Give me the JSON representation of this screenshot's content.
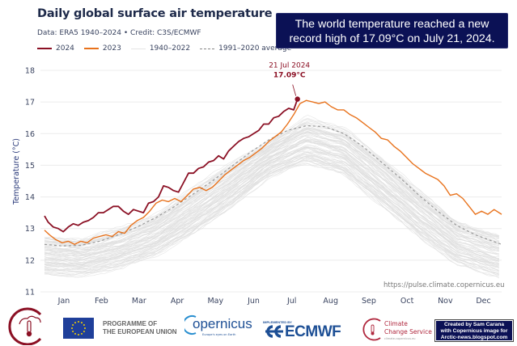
{
  "header": {
    "title": "Daily global surface air temperature",
    "subtitle": "Data: ERA5 1940–2024  •  Credit: C3S/ECMWF",
    "banner_line1": "The world temperature reached a new",
    "banner_line2": "record high of 17.09°C on July 21, 2024."
  },
  "legend": [
    {
      "label": "2024",
      "color": "#8b1024",
      "style": "solid"
    },
    {
      "label": "2023",
      "color": "#e8721c",
      "style": "solid"
    },
    {
      "label": "1940–2022",
      "color": "#e0e0e0",
      "style": "solid"
    },
    {
      "label": "1991–2020 average",
      "color": "#999999",
      "style": "dashed"
    }
  ],
  "chart_data": {
    "type": "line",
    "title": "Daily global surface air temperature",
    "xlabel": "",
    "ylabel": "Temperature (°C)",
    "ylim": [
      11,
      18
    ],
    "yticks": [
      11,
      12,
      13,
      14,
      15,
      16,
      17,
      18
    ],
    "xlim_day_of_year": [
      1,
      366
    ],
    "x_tick_labels": [
      "Jan",
      "Feb",
      "Mar",
      "Apr",
      "May",
      "Jun",
      "Jul",
      "Aug",
      "Sep",
      "Oct",
      "Nov",
      "Dec"
    ],
    "grid": "horizontal",
    "legend_position": "top-left",
    "series": [
      {
        "name": "2024",
        "color": "#8b1024",
        "x_day": [
          1,
          4,
          8,
          12,
          16,
          20,
          24,
          28,
          32,
          36,
          40,
          44,
          48,
          52,
          56,
          60,
          64,
          68,
          72,
          76,
          80,
          84,
          88,
          92,
          96,
          100,
          104,
          108,
          112,
          116,
          120,
          124,
          128,
          132,
          136,
          140,
          144,
          148,
          152,
          156,
          160,
          164,
          168,
          172,
          176,
          180,
          184,
          188,
          192,
          196,
          200,
          203
        ],
        "values": [
          13.4,
          13.2,
          13.05,
          13.0,
          12.9,
          13.05,
          13.15,
          13.1,
          13.2,
          13.25,
          13.35,
          13.5,
          13.5,
          13.6,
          13.7,
          13.7,
          13.55,
          13.45,
          13.6,
          13.55,
          13.5,
          13.8,
          13.85,
          14.0,
          14.35,
          14.3,
          14.2,
          14.15,
          14.45,
          14.75,
          14.75,
          14.9,
          14.95,
          15.1,
          15.15,
          15.3,
          15.2,
          15.45,
          15.6,
          15.75,
          15.85,
          15.9,
          16.0,
          16.1,
          16.3,
          16.3,
          16.5,
          16.55,
          16.7,
          16.8,
          16.75,
          17.09
        ]
      },
      {
        "name": "2023",
        "color": "#e8721c",
        "x_day": [
          1,
          5,
          10,
          15,
          20,
          25,
          30,
          35,
          40,
          45,
          50,
          55,
          60,
          65,
          70,
          75,
          80,
          85,
          90,
          95,
          100,
          105,
          110,
          115,
          120,
          125,
          130,
          135,
          140,
          145,
          150,
          155,
          160,
          165,
          170,
          175,
          180,
          185,
          190,
          195,
          200,
          205,
          210,
          215,
          220,
          225,
          230,
          235,
          240,
          245,
          250,
          255,
          260,
          265,
          270,
          275,
          280,
          285,
          290,
          295,
          300,
          305,
          310,
          315,
          320,
          325,
          330,
          335,
          340,
          345,
          350,
          355,
          360,
          366
        ],
        "values": [
          12.95,
          12.8,
          12.65,
          12.55,
          12.6,
          12.5,
          12.6,
          12.55,
          12.7,
          12.75,
          12.8,
          12.75,
          12.9,
          12.85,
          13.1,
          13.25,
          13.35,
          13.55,
          13.8,
          13.9,
          13.85,
          13.95,
          13.85,
          14.05,
          14.25,
          14.3,
          14.2,
          14.3,
          14.5,
          14.7,
          14.85,
          15.0,
          15.15,
          15.25,
          15.4,
          15.55,
          15.75,
          15.9,
          16.05,
          16.3,
          16.6,
          16.95,
          17.05,
          17.0,
          16.95,
          17.0,
          16.85,
          16.75,
          16.75,
          16.6,
          16.5,
          16.35,
          16.2,
          16.05,
          15.85,
          15.8,
          15.6,
          15.45,
          15.25,
          15.05,
          14.9,
          14.75,
          14.65,
          14.55,
          14.35,
          14.05,
          14.1,
          13.95,
          13.7,
          13.45,
          13.55,
          13.45,
          13.6,
          13.45
        ]
      },
      {
        "name": "1991–2020 average",
        "color": "#999999",
        "style": "dashed",
        "x_day": [
          1,
          15,
          30,
          45,
          60,
          75,
          90,
          105,
          120,
          135,
          150,
          165,
          180,
          195,
          210,
          225,
          240,
          255,
          270,
          285,
          300,
          315,
          330,
          345,
          366
        ],
        "values": [
          12.5,
          12.45,
          12.47,
          12.6,
          12.8,
          13.05,
          13.35,
          13.7,
          14.1,
          14.5,
          14.95,
          15.4,
          15.8,
          16.1,
          16.25,
          16.22,
          16.0,
          15.6,
          15.1,
          14.6,
          14.05,
          13.55,
          13.1,
          12.8,
          12.5
        ]
      },
      {
        "name": "1940–2022",
        "color": "#e0e0e0",
        "band_min": {
          "x_day": [
            1,
            30,
            60,
            90,
            120,
            150,
            180,
            210,
            240,
            270,
            300,
            330,
            366
          ],
          "values": [
            11.45,
            11.45,
            11.65,
            12.05,
            12.75,
            13.55,
            14.55,
            14.95,
            14.6,
            13.6,
            12.6,
            11.8,
            11.35
          ]
        },
        "band_max": {
          "x_day": [
            1,
            30,
            60,
            90,
            120,
            150,
            180,
            210,
            240,
            270,
            300,
            330,
            366
          ],
          "values": [
            12.85,
            12.75,
            13.1,
            13.55,
            14.4,
            15.2,
            15.85,
            16.6,
            16.3,
            15.4,
            14.35,
            13.35,
            12.9
          ]
        }
      }
    ],
    "annotations": [
      {
        "label_date": "21 Jul 2024",
        "label_value": "17.09°C",
        "x_day": 203,
        "y": 17.09
      }
    ]
  },
  "footer": {
    "source_url": "https://pulse.climate.copernicus.eu",
    "eu_text_line1": "PROGRAMME OF",
    "eu_text_line2": "THE EUROPEAN UNION",
    "copernicus_name": "opernicus",
    "copernicus_sub": "Europe's eyes on Earth",
    "ecmwf_implemented": "IMPLEMENTED BY",
    "ecmwf_name": "ECMWF",
    "c3s_line1": "Climate",
    "c3s_line2": "Change Service",
    "c3s_sub": "climate.copernicus.eu",
    "credit_line1": "Created by Sam Carana",
    "credit_line2": "with Copernicus image for",
    "credit_line3": "Arctic-news.blogspot.com"
  }
}
